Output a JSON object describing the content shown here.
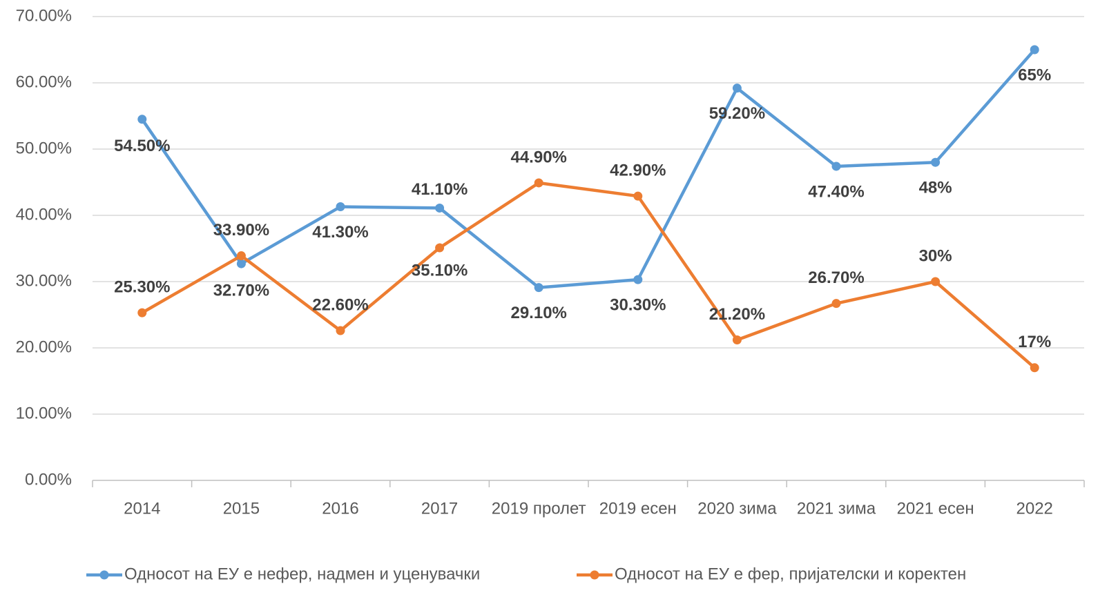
{
  "chart_data": {
    "type": "line",
    "categories": [
      "2014",
      "2015",
      "2016",
      "2017",
      "2019 пролет",
      "2019 есен",
      "2020 зима",
      "2021 зима",
      "2021 есен",
      "2022"
    ],
    "series": [
      {
        "name": "Односот на ЕУ е нефер, надмен и уценувачки",
        "color": "#5b9bd5",
        "values": [
          54.5,
          32.7,
          41.3,
          41.1,
          29.1,
          30.3,
          59.2,
          47.4,
          48,
          65
        ],
        "value_labels": [
          "54.50%",
          "32.70%",
          "41.30%",
          "41.10%",
          "29.10%",
          "30.30%",
          "59.20%",
          "47.40%",
          "48%",
          "65%"
        ]
      },
      {
        "name": "Односот на ЕУ е фер, пријателски и коректен",
        "color": "#ed7d31",
        "values": [
          25.3,
          33.9,
          22.6,
          35.1,
          44.9,
          42.9,
          21.2,
          26.7,
          30,
          17
        ],
        "value_labels": [
          "25.30%",
          "33.90%",
          "22.60%",
          "35.10%",
          "44.90%",
          "42.90%",
          "21.20%",
          "26.70%",
          "30%",
          "17%"
        ]
      }
    ],
    "ylim": [
      0,
      70
    ],
    "yticks": [
      {
        "value": 0,
        "label": "0.00%"
      },
      {
        "value": 10,
        "label": "10.00%"
      },
      {
        "value": 20,
        "label": "20.00%"
      },
      {
        "value": 30,
        "label": "30.00%"
      },
      {
        "value": 40,
        "label": "40.00%"
      },
      {
        "value": 50,
        "label": "50.00%"
      },
      {
        "value": 60,
        "label": "60.00%"
      },
      {
        "value": 70,
        "label": "70.00%"
      }
    ],
    "grid": true,
    "legend": "bottom"
  }
}
